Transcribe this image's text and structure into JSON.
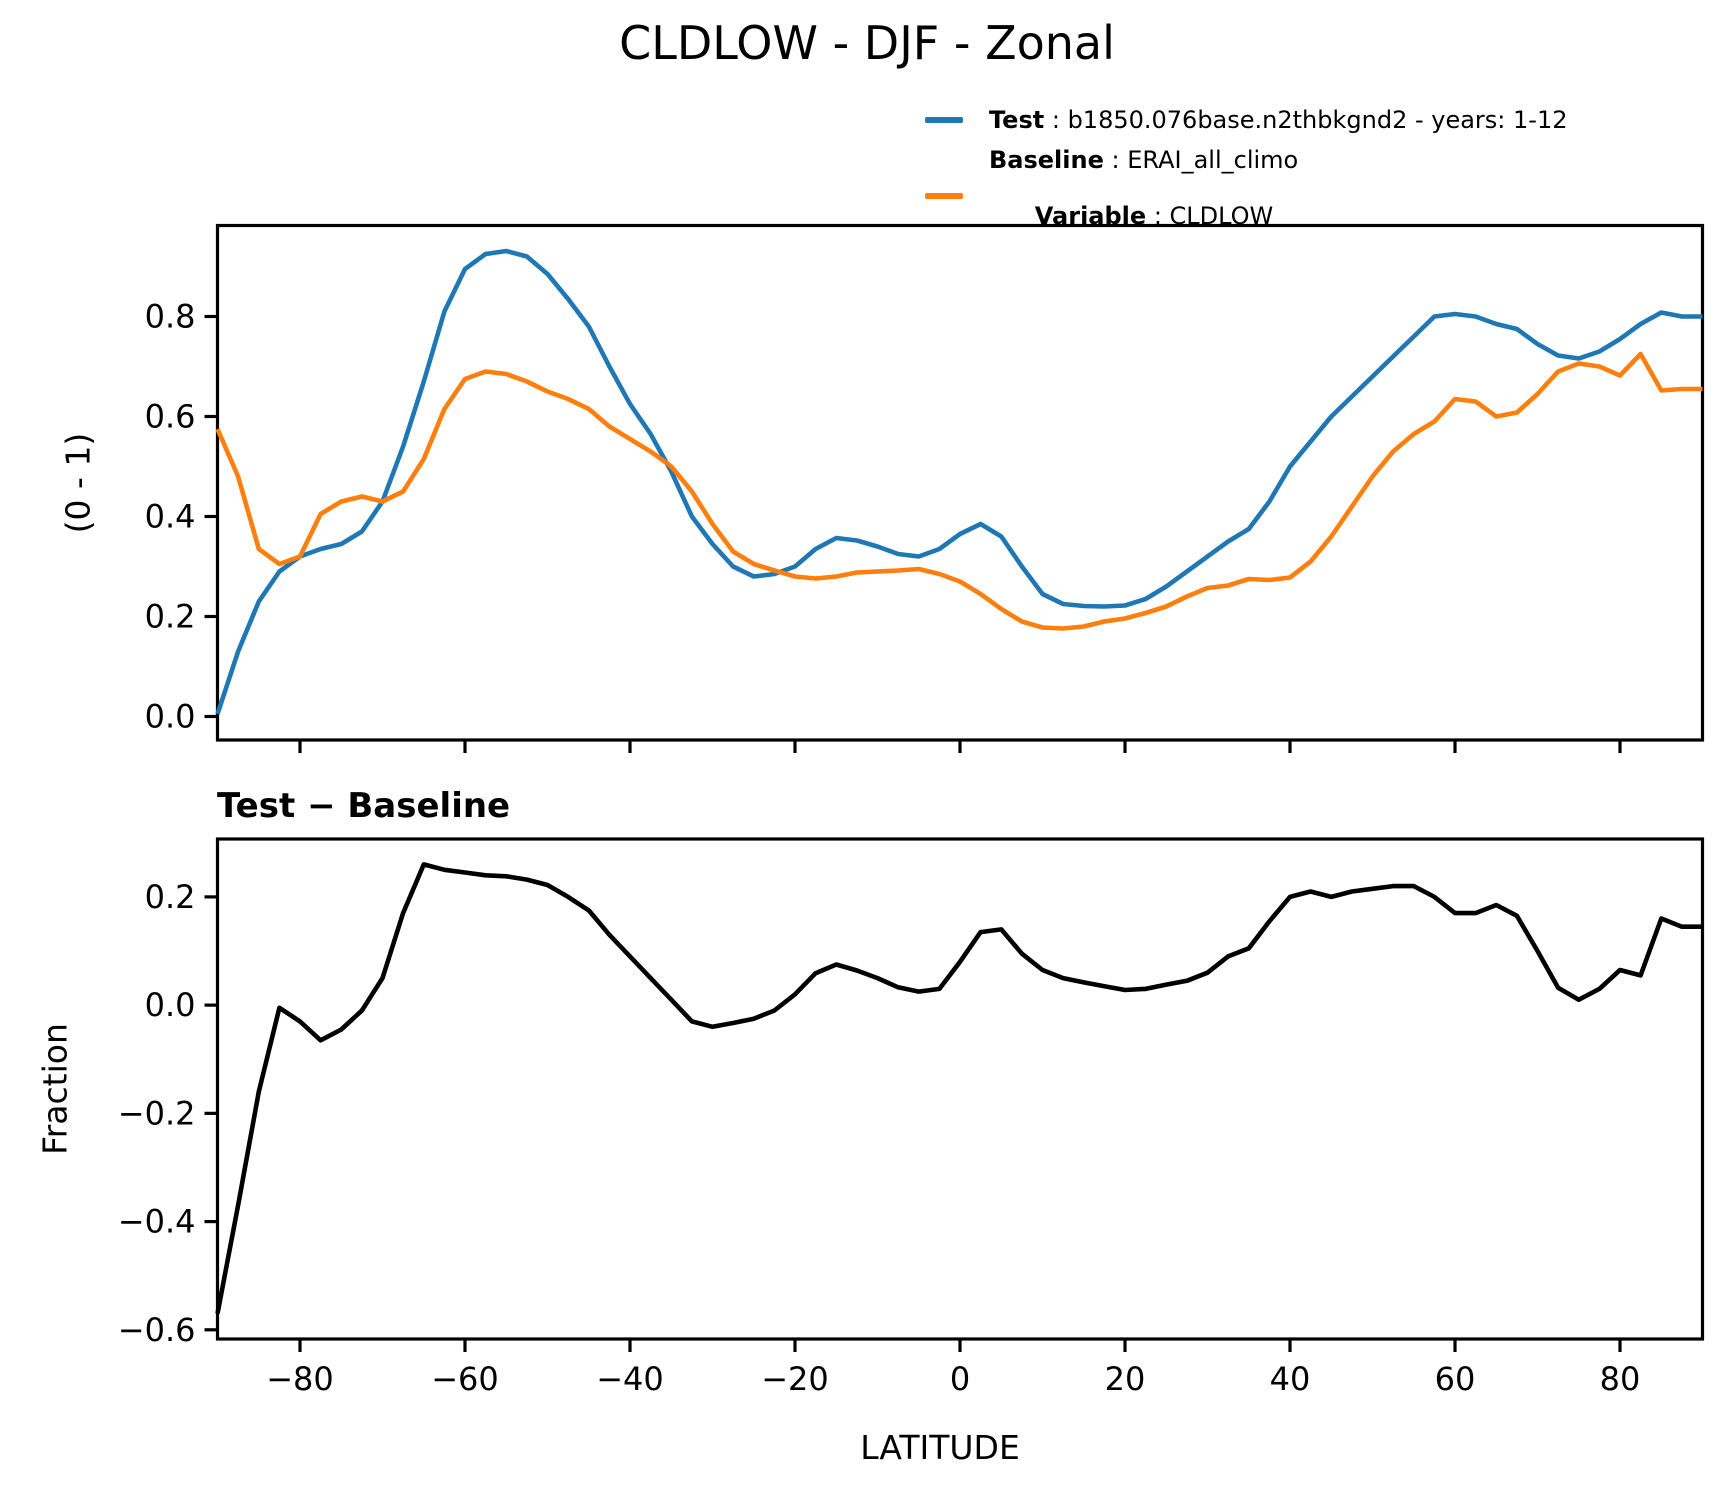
{
  "title": "CLDLOW - DJF - Zonal",
  "colors": {
    "test": "#1f77b4",
    "baseline": "#ff7f0e",
    "diff": "#000000",
    "axis": "#000000"
  },
  "legend": {
    "test": {
      "key": "Test",
      "text": " : b1850.076base.n2thbkgnd2 - years: 1-12"
    },
    "baseline": {
      "key": "Baseline",
      "text": " : ERAI_all_climo"
    },
    "variable": {
      "key": "Variable",
      "text": " : CLDLOW"
    }
  },
  "panels": [
    {
      "ylabel": "(0 - 1)",
      "yticks": [
        0.0,
        0.2,
        0.4,
        0.6,
        0.8
      ],
      "ytick_labels": [
        "0.0",
        "0.2",
        "0.4",
        "0.6",
        "0.8"
      ],
      "xticks": [
        -80,
        -60,
        -40,
        -20,
        0,
        20,
        40,
        60,
        80
      ]
    },
    {
      "subtitle": "Test − Baseline",
      "ylabel": "Fraction",
      "xlabel": "LATITUDE",
      "yticks": [
        -0.6,
        -0.4,
        -0.2,
        0.0,
        0.2
      ],
      "ytick_labels": [
        "−0.6",
        "−0.4",
        "−0.2",
        "0.0",
        "0.2"
      ],
      "xticks": [
        -80,
        -60,
        -40,
        -20,
        0,
        20,
        40,
        60,
        80
      ],
      "xtick_labels": [
        "−80",
        "−60",
        "−40",
        "−20",
        "0",
        "20",
        "40",
        "60",
        "80"
      ]
    }
  ],
  "chart_data": [
    {
      "type": "line",
      "title": "CLDLOW - DJF - Zonal",
      "xlabel": "LATITUDE",
      "ylabel": "(0 - 1)",
      "xlim": [
        -90,
        90
      ],
      "ylim": [
        -0.047,
        0.982
      ],
      "grid": false,
      "legend_position": "upper-right-outside",
      "x": [
        -90,
        -87.5,
        -85,
        -82.5,
        -80,
        -77.5,
        -75,
        -72.5,
        -70,
        -67.5,
        -65,
        -62.5,
        -60,
        -57.5,
        -55,
        -52.5,
        -50,
        -47.5,
        -45,
        -42.5,
        -40,
        -37.5,
        -35,
        -32.5,
        -30,
        -27.5,
        -25,
        -22.5,
        -20,
        -17.5,
        -15,
        -12.5,
        -10,
        -7.5,
        -5,
        -2.5,
        0,
        2.5,
        5,
        7.5,
        10,
        12.5,
        15,
        17.5,
        20,
        22.5,
        25,
        27.5,
        30,
        32.5,
        35,
        37.5,
        40,
        42.5,
        45,
        47.5,
        50,
        52.5,
        55,
        57.5,
        60,
        62.5,
        65,
        67.5,
        70,
        72.5,
        75,
        77.5,
        80,
        82.5,
        85,
        87.5,
        90
      ],
      "series": [
        {
          "name": "Test : b1850.076base.n2thbkgnd2 - years: 1-12",
          "values": [
            0.005,
            0.13,
            0.23,
            0.29,
            0.32,
            0.335,
            0.345,
            0.37,
            0.43,
            0.54,
            0.67,
            0.81,
            0.895,
            0.925,
            0.931,
            0.92,
            0.885,
            0.835,
            0.78,
            0.7,
            0.625,
            0.565,
            0.49,
            0.4,
            0.345,
            0.3,
            0.28,
            0.285,
            0.3,
            0.335,
            0.357,
            0.352,
            0.34,
            0.325,
            0.32,
            0.335,
            0.365,
            0.385,
            0.36,
            0.3,
            0.245,
            0.225,
            0.221,
            0.22,
            0.222,
            0.235,
            0.26,
            0.29,
            0.32,
            0.35,
            0.375,
            0.43,
            0.5,
            0.55,
            0.6,
            0.64,
            0.68,
            0.72,
            0.76,
            0.8,
            0.805,
            0.8,
            0.785,
            0.775,
            0.745,
            0.722,
            0.716,
            0.73,
            0.755,
            0.785,
            0.808,
            0.8,
            0.8
          ]
        },
        {
          "name": "Baseline : ERAI_all_climo",
          "values": [
            0.575,
            0.48,
            0.335,
            0.305,
            0.32,
            0.405,
            0.43,
            0.44,
            0.43,
            0.45,
            0.515,
            0.615,
            0.675,
            0.69,
            0.685,
            0.67,
            0.65,
            0.635,
            0.615,
            0.58,
            0.555,
            0.53,
            0.5,
            0.45,
            0.385,
            0.33,
            0.305,
            0.292,
            0.28,
            0.276,
            0.28,
            0.288,
            0.29,
            0.292,
            0.295,
            0.285,
            0.27,
            0.245,
            0.215,
            0.19,
            0.178,
            0.176,
            0.18,
            0.19,
            0.196,
            0.207,
            0.22,
            0.24,
            0.257,
            0.262,
            0.275,
            0.273,
            0.278,
            0.31,
            0.36,
            0.42,
            0.48,
            0.53,
            0.565,
            0.59,
            0.635,
            0.63,
            0.6,
            0.608,
            0.645,
            0.69,
            0.706,
            0.7,
            0.682,
            0.725,
            0.652,
            0.655,
            0.655
          ]
        }
      ]
    },
    {
      "type": "line",
      "title": "Test − Baseline",
      "xlabel": "LATITUDE",
      "ylabel": "Fraction",
      "xlim": [
        -90,
        90
      ],
      "ylim": [
        -0.617,
        0.307
      ],
      "grid": false,
      "x": [
        -90,
        -87.5,
        -85,
        -82.5,
        -80,
        -77.5,
        -75,
        -72.5,
        -70,
        -67.5,
        -65,
        -62.5,
        -60,
        -57.5,
        -55,
        -52.5,
        -50,
        -47.5,
        -45,
        -42.5,
        -40,
        -37.5,
        -35,
        -32.5,
        -30,
        -27.5,
        -25,
        -22.5,
        -20,
        -17.5,
        -15,
        -12.5,
        -10,
        -7.5,
        -5,
        -2.5,
        0,
        2.5,
        5,
        7.5,
        10,
        12.5,
        15,
        17.5,
        20,
        22.5,
        25,
        27.5,
        30,
        32.5,
        35,
        37.5,
        40,
        42.5,
        45,
        47.5,
        50,
        52.5,
        55,
        57.5,
        60,
        62.5,
        65,
        67.5,
        70,
        72.5,
        75,
        77.5,
        80,
        82.5,
        85,
        87.5,
        90
      ],
      "series": [
        {
          "name": "Test − Baseline",
          "values": [
            -0.57,
            -0.37,
            -0.16,
            -0.005,
            -0.03,
            -0.065,
            -0.045,
            -0.01,
            0.05,
            0.17,
            0.26,
            0.25,
            0.245,
            0.24,
            0.238,
            0.232,
            0.222,
            0.2,
            0.175,
            0.13,
            0.09,
            0.05,
            0.01,
            -0.03,
            -0.04,
            -0.033,
            -0.025,
            -0.01,
            0.02,
            0.059,
            0.075,
            0.064,
            0.05,
            0.033,
            0.025,
            0.03,
            0.08,
            0.135,
            0.14,
            0.095,
            0.065,
            0.05,
            0.042,
            0.035,
            0.028,
            0.03,
            0.038,
            0.045,
            0.06,
            0.09,
            0.105,
            0.155,
            0.2,
            0.21,
            0.2,
            0.21,
            0.215,
            0.22,
            0.22,
            0.2,
            0.17,
            0.17,
            0.185,
            0.165,
            0.1,
            0.032,
            0.01,
            0.03,
            0.065,
            0.055,
            0.16,
            0.145,
            0.145
          ]
        }
      ]
    }
  ]
}
